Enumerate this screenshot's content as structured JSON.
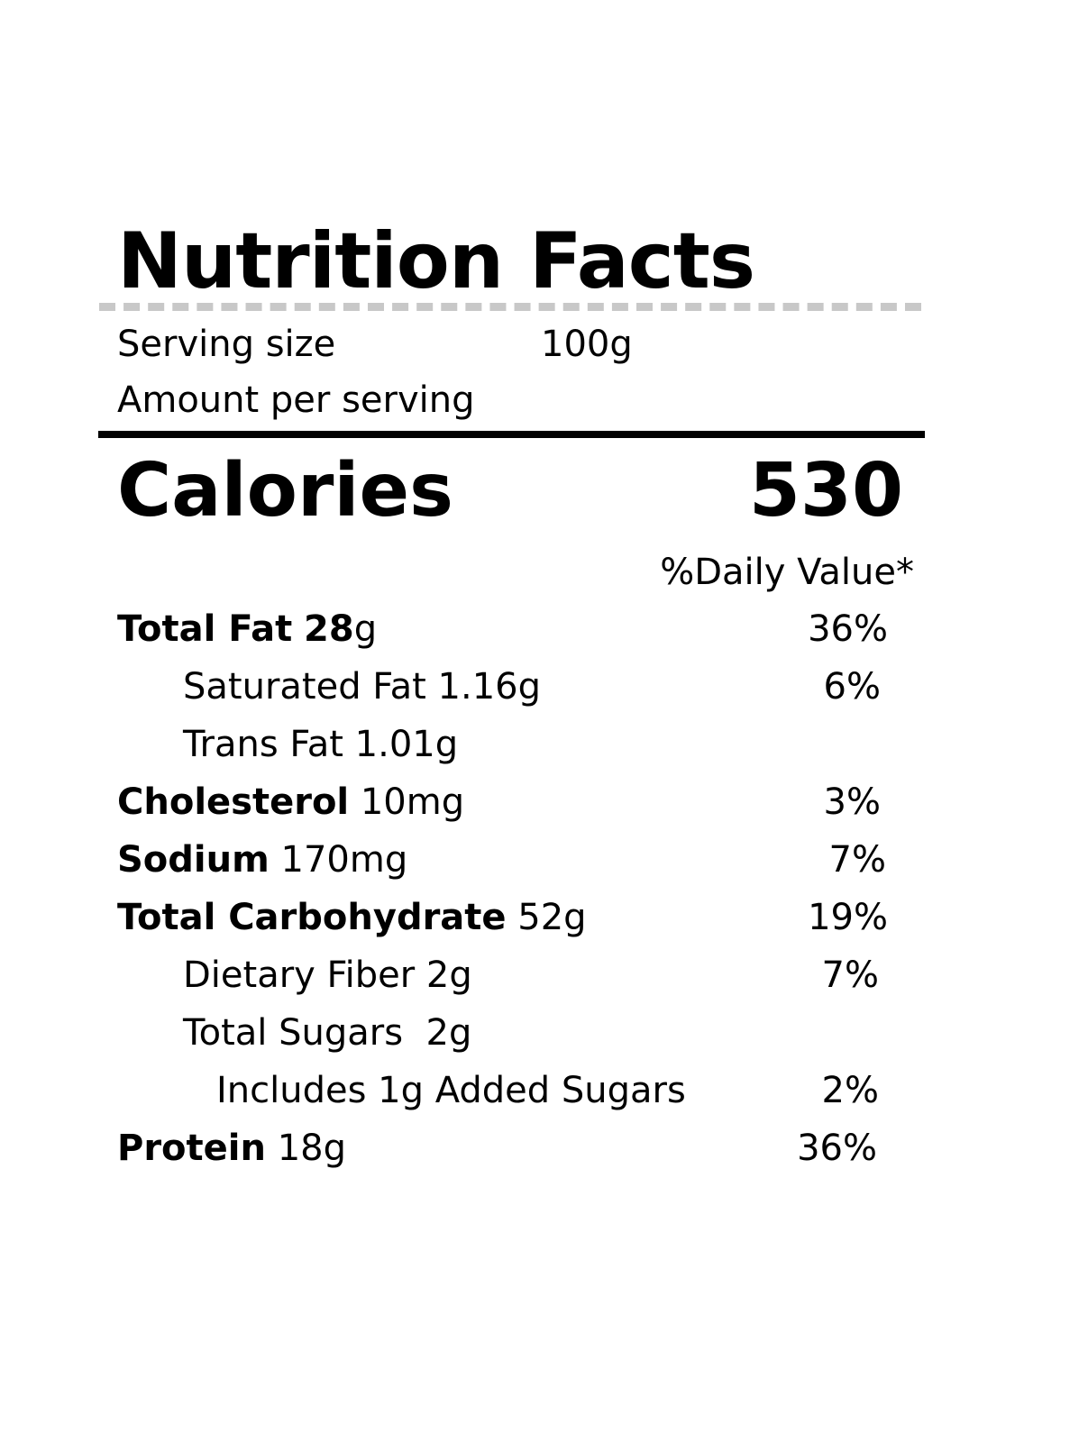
{
  "label": {
    "title": "Nutrition Facts",
    "serving_size_label": "Serving size",
    "serving_size_value": "100g",
    "amount_per_serving": "Amount per serving",
    "calories_label": "Calories",
    "calories_value": "530",
    "daily_value_header": "%Daily Value*",
    "nutrients": [
      {
        "name": "Total Fat",
        "bold_amount": "28",
        "amount": "g",
        "dv": "36%"
      },
      {
        "name": "Saturated Fat 1.16g",
        "dv": "6%"
      },
      {
        "name": "Trans Fat 1.01g",
        "dv": ""
      },
      {
        "name": "Cholesterol",
        "amount": "10mg",
        "dv": "3%"
      },
      {
        "name": "Sodium",
        "amount": "170mg",
        "dv": "7%"
      },
      {
        "name": "Total Carbohydrate",
        "amount": "52g",
        "dv": "19%"
      },
      {
        "name": "Dietary Fiber 2g",
        "dv": "7%"
      },
      {
        "name": "Total Sugars  2g",
        "dv": ""
      },
      {
        "name": "Includes 1g Added Sugars",
        "dv": "2%"
      },
      {
        "name": "Protein",
        "amount": "18g",
        "dv": "36%"
      }
    ]
  }
}
